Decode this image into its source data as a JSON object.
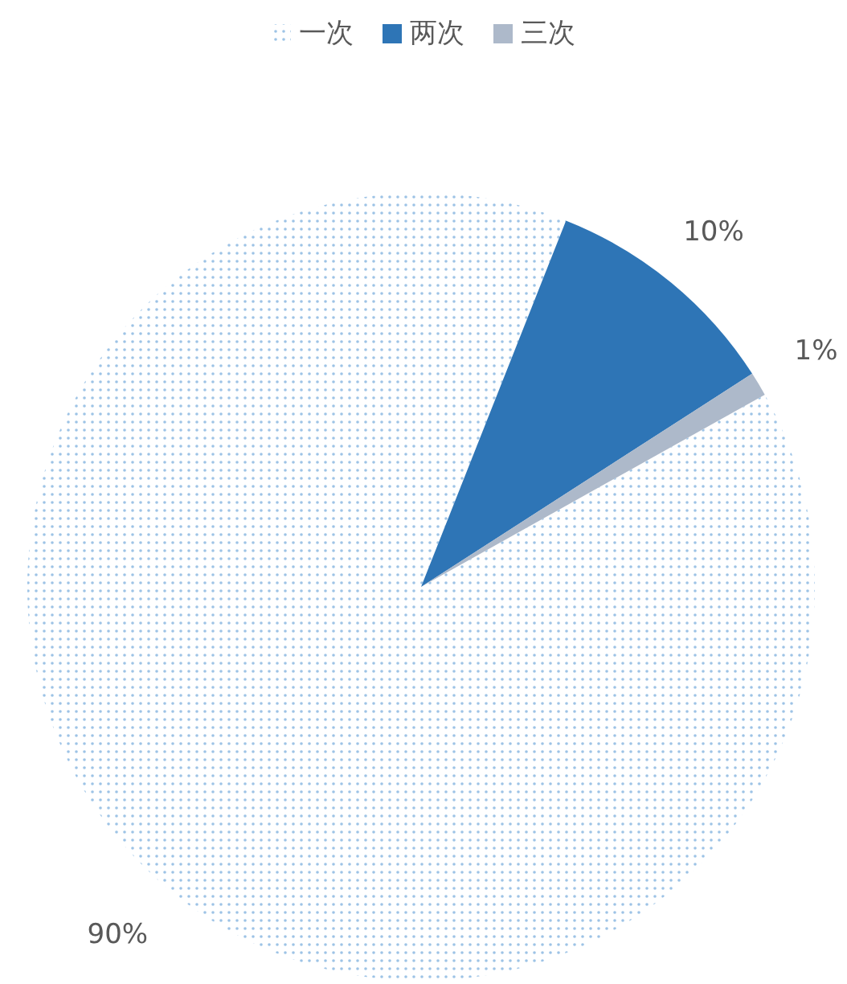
{
  "chart_data": {
    "type": "pie",
    "categories": [
      "一次",
      "两次",
      "三次"
    ],
    "values": [
      90,
      10,
      1
    ],
    "colors": [
      "#9dc3e6",
      "#2e75b6",
      "#adb9ca"
    ],
    "value_labels": [
      "90%",
      "10%",
      "1%"
    ],
    "legend": "top"
  }
}
